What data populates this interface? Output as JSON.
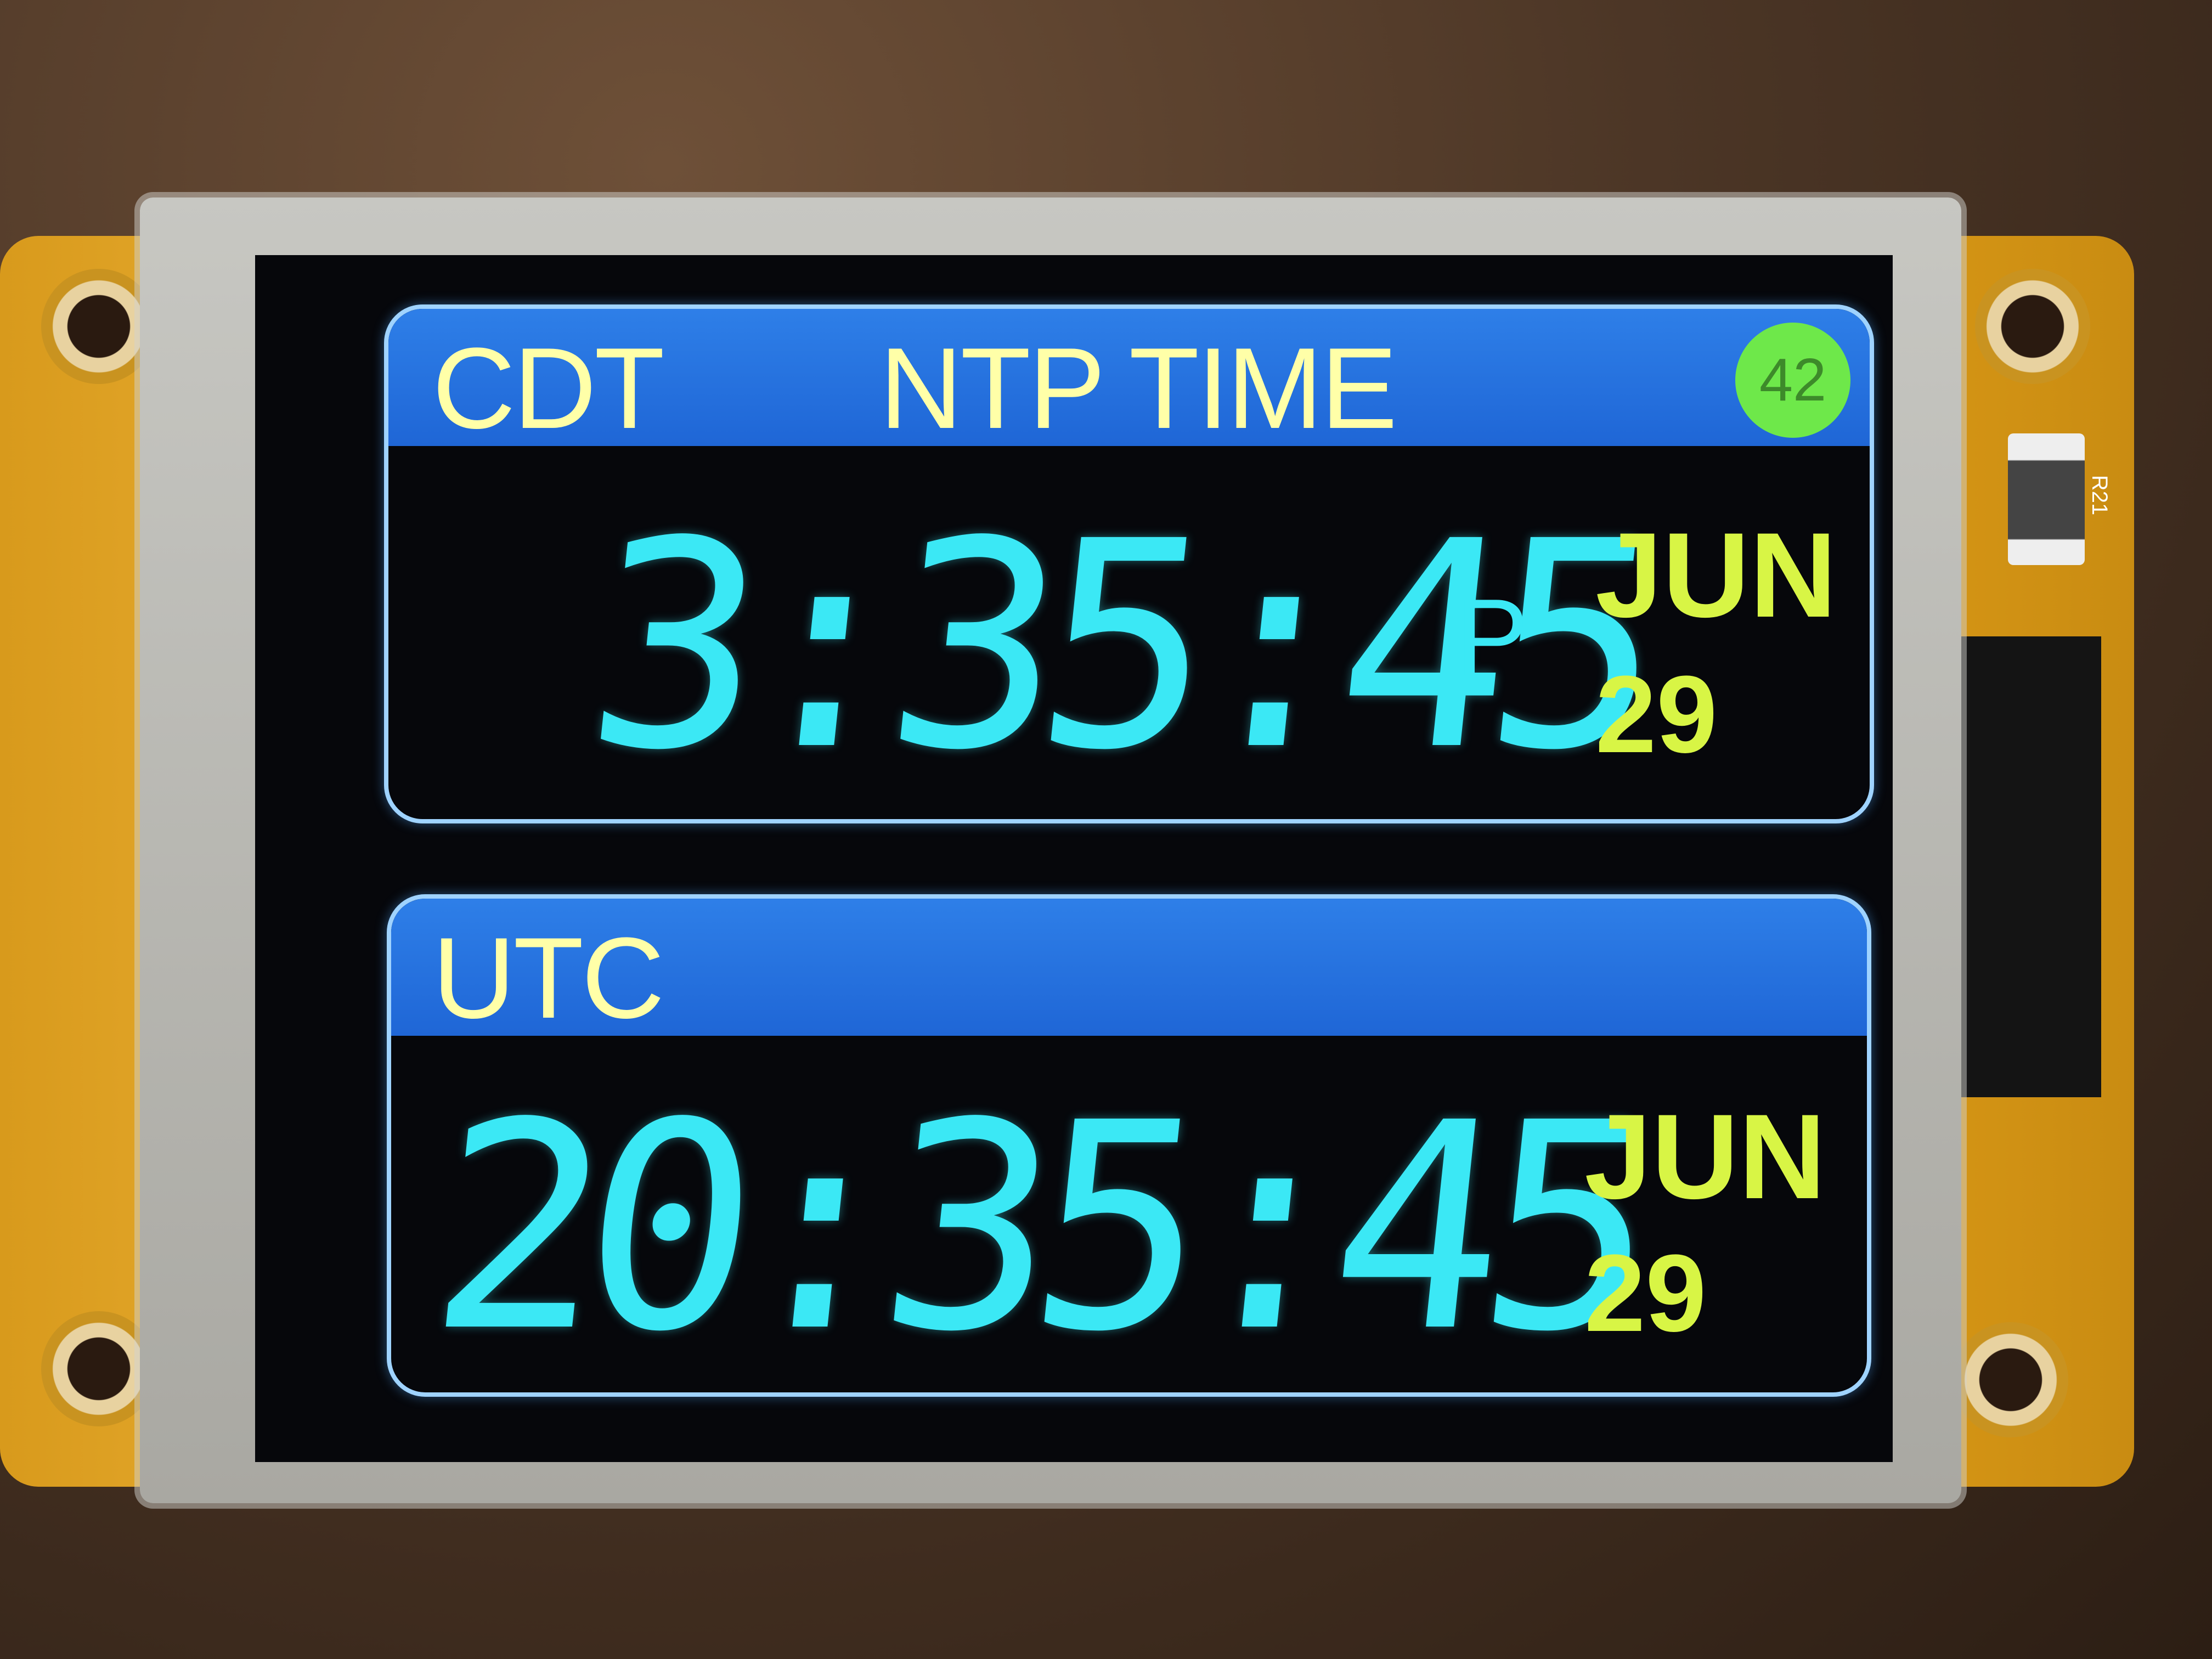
{
  "top_panel": {
    "zone": "CDT",
    "title": "NTP TIME",
    "badge": "42",
    "time": "3:35:45",
    "ampm": "P",
    "month": "JUN",
    "day": "29"
  },
  "bottom_panel": {
    "zone": "UTC",
    "time": "20:35:45",
    "month": "JUN",
    "day": "29"
  },
  "board": {
    "resistor_label": "R21"
  },
  "colors": {
    "header": "#1f66d6",
    "digits": "#3be8f5",
    "date": "#d8f545",
    "badge": "#6ee84a",
    "pcb": "#d89a1c"
  }
}
